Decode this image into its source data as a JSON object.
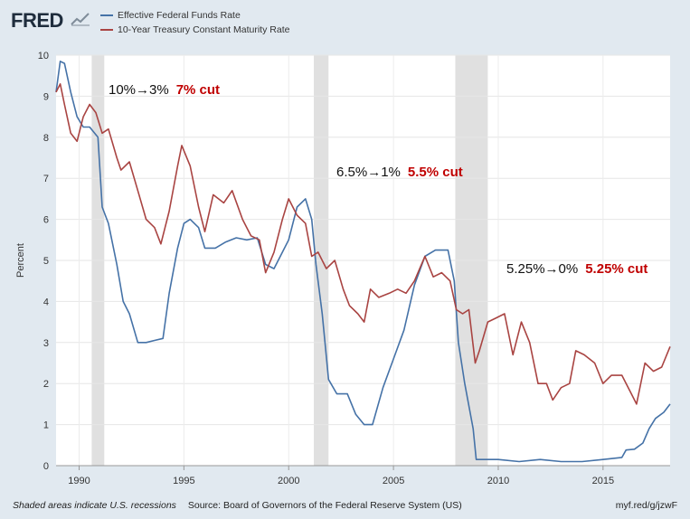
{
  "header": {
    "logo_text": "FRED",
    "logo_icon": "line-chart-icon"
  },
  "chart_data": {
    "type": "line",
    "xlabel": "",
    "ylabel": "Percent",
    "xlim": [
      1988.9,
      2018.2
    ],
    "ylim": [
      0,
      10
    ],
    "x_ticks": [
      1990,
      1995,
      2000,
      2005,
      2010,
      2015
    ],
    "y_ticks": [
      0,
      1,
      2,
      3,
      4,
      5,
      6,
      7,
      8,
      9,
      10
    ],
    "grid": true,
    "legend_position": "top-left",
    "recessions": [
      [
        1990.6,
        1991.2
      ],
      [
        2001.2,
        2001.9
      ],
      [
        2007.95,
        2009.5
      ]
    ],
    "series": [
      {
        "name": "Effective Federal Funds Rate",
        "color": "#4572a7",
        "x": [
          1988.9,
          1989.1,
          1989.3,
          1989.6,
          1989.9,
          1990.2,
          1990.5,
          1990.9,
          1991.1,
          1991.4,
          1991.8,
          1992.1,
          1992.4,
          1992.8,
          1993.2,
          1993.6,
          1994.0,
          1994.3,
          1994.7,
          1995.0,
          1995.3,
          1995.7,
          1996.0,
          1996.5,
          1997.0,
          1997.5,
          1998.0,
          1998.5,
          1998.9,
          1999.3,
          1999.7,
          2000.0,
          2000.4,
          2000.8,
          2001.1,
          2001.3,
          2001.6,
          2001.9,
          2002.3,
          2002.8,
          2003.2,
          2003.6,
          2004.0,
          2004.5,
          2005.0,
          2005.5,
          2006.0,
          2006.5,
          2007.0,
          2007.6,
          2007.9,
          2008.1,
          2008.4,
          2008.8,
          2008.95,
          2009.5,
          2010.0,
          2011.0,
          2012.0,
          2013.0,
          2014.0,
          2015.0,
          2015.9,
          2016.1,
          2016.5,
          2016.9,
          2017.2,
          2017.5,
          2017.9,
          2018.2
        ],
        "values": [
          9.1,
          9.85,
          9.8,
          9.1,
          8.5,
          8.25,
          8.25,
          8.0,
          6.3,
          5.9,
          4.9,
          4.0,
          3.7,
          3.0,
          3.0,
          3.05,
          3.1,
          4.2,
          5.3,
          5.9,
          6.0,
          5.8,
          5.3,
          5.3,
          5.45,
          5.55,
          5.5,
          5.55,
          4.9,
          4.8,
          5.2,
          5.5,
          6.3,
          6.5,
          6.0,
          4.9,
          3.7,
          2.1,
          1.75,
          1.75,
          1.25,
          1.0,
          1.0,
          1.9,
          2.6,
          3.3,
          4.4,
          5.1,
          5.25,
          5.25,
          4.5,
          3.0,
          2.0,
          0.9,
          0.15,
          0.15,
          0.15,
          0.1,
          0.15,
          0.1,
          0.1,
          0.15,
          0.2,
          0.38,
          0.4,
          0.55,
          0.9,
          1.15,
          1.3,
          1.5
        ]
      },
      {
        "name": "10-Year Treasury Constant Maturity Rate",
        "color": "#a94442",
        "x": [
          1988.9,
          1989.1,
          1989.3,
          1989.6,
          1989.9,
          1990.2,
          1990.5,
          1990.8,
          1991.1,
          1991.4,
          1991.8,
          1992.0,
          1992.4,
          1992.8,
          1993.2,
          1993.6,
          1993.9,
          1994.3,
          1994.7,
          1994.9,
          1995.3,
          1995.7,
          1996.0,
          1996.4,
          1996.9,
          1997.3,
          1997.8,
          1998.2,
          1998.6,
          1998.9,
          1999.3,
          1999.7,
          2000.0,
          2000.4,
          2000.8,
          2001.1,
          2001.4,
          2001.8,
          2002.2,
          2002.6,
          2002.9,
          2003.3,
          2003.6,
          2003.9,
          2004.3,
          2004.8,
          2005.2,
          2005.6,
          2006.0,
          2006.5,
          2006.9,
          2007.3,
          2007.7,
          2008.0,
          2008.3,
          2008.6,
          2008.9,
          2009.1,
          2009.5,
          2009.9,
          2010.3,
          2010.7,
          2011.1,
          2011.5,
          2011.9,
          2012.3,
          2012.6,
          2013.0,
          2013.4,
          2013.7,
          2014.1,
          2014.6,
          2015.0,
          2015.4,
          2015.9,
          2016.3,
          2016.6,
          2017.0,
          2017.4,
          2017.8,
          2018.2
        ],
        "values": [
          9.1,
          9.3,
          8.8,
          8.1,
          7.9,
          8.5,
          8.8,
          8.6,
          8.1,
          8.2,
          7.5,
          7.2,
          7.4,
          6.7,
          6.0,
          5.8,
          5.4,
          6.2,
          7.3,
          7.8,
          7.3,
          6.3,
          5.7,
          6.6,
          6.4,
          6.7,
          6.0,
          5.6,
          5.5,
          4.7,
          5.2,
          6.0,
          6.5,
          6.1,
          5.9,
          5.1,
          5.2,
          4.8,
          5.0,
          4.3,
          3.9,
          3.7,
          3.5,
          4.3,
          4.1,
          4.2,
          4.3,
          4.2,
          4.5,
          5.1,
          4.6,
          4.7,
          4.5,
          3.8,
          3.7,
          3.8,
          2.5,
          2.8,
          3.5,
          3.6,
          3.7,
          2.7,
          3.5,
          3.0,
          2.0,
          2.0,
          1.6,
          1.9,
          2.0,
          2.8,
          2.7,
          2.5,
          2.0,
          2.2,
          2.2,
          1.8,
          1.5,
          2.5,
          2.3,
          2.4,
          2.9
        ]
      }
    ],
    "annotations": [
      {
        "text": "10%→3%",
        "cut": "7% cut"
      },
      {
        "text": "6.5%→1%",
        "cut": "5.5% cut"
      },
      {
        "text": "5.25%→0%",
        "cut": "5.25% cut"
      }
    ]
  },
  "footer": {
    "note": "Shaded areas indicate U.S. recessions",
    "source": "Source: Board of Governors of the Federal Reserve System (US)",
    "link": "myf.red/g/jzwF"
  }
}
